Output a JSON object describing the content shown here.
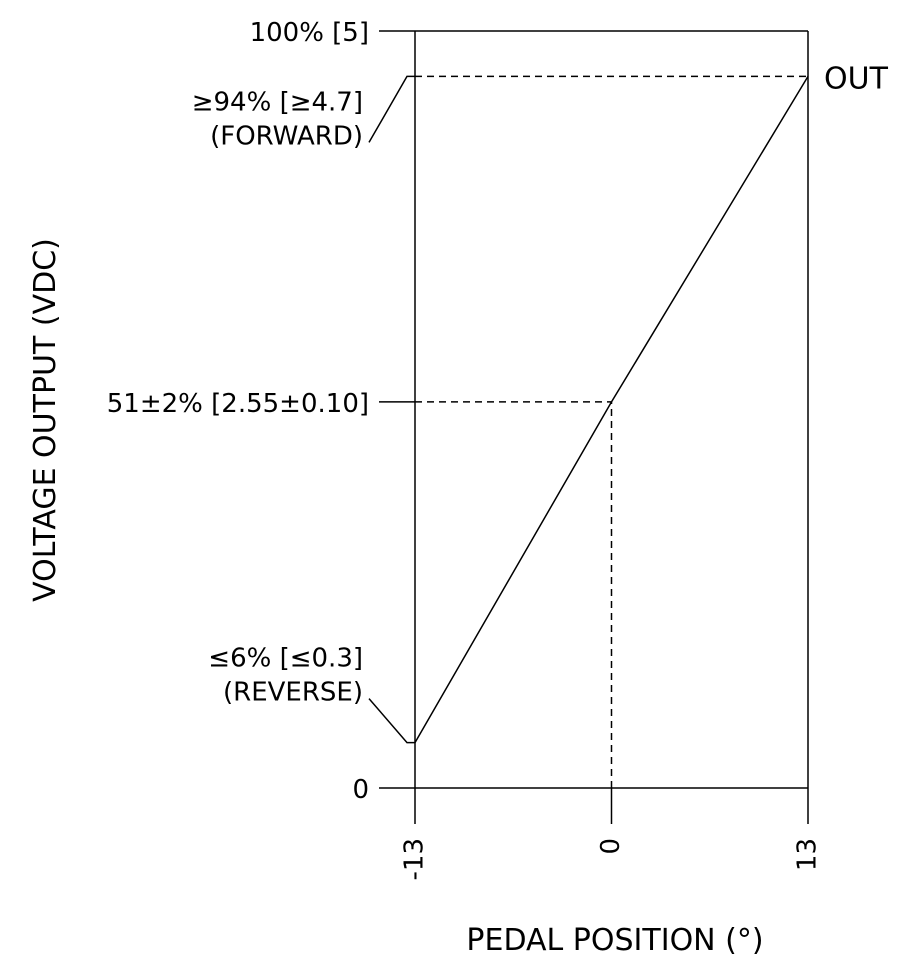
{
  "chart_data": {
    "type": "line",
    "title": "",
    "xlabel": "PEDAL POSITION (°)",
    "ylabel": "VOLTAGE OUTPUT (VDC)",
    "xlim": [
      -13,
      13
    ],
    "ylim": [
      0,
      100
    ],
    "x_ticks": [
      {
        "value": -13,
        "label": "-13"
      },
      {
        "value": 0,
        "label": "0"
      },
      {
        "value": 13,
        "label": "13"
      }
    ],
    "y_ticks": [
      {
        "value": 100,
        "label": "100% [5]"
      },
      {
        "value": 51,
        "label": "51±2% [2.55±0.10]"
      },
      {
        "value": 0,
        "label": "0"
      }
    ],
    "annotations": [
      {
        "y": 94,
        "lines": [
          "≥94% [≥4.7]",
          "(FORWARD)"
        ]
      },
      {
        "y": 6,
        "lines": [
          "≤6% [≤0.3]",
          "(REVERSE)"
        ]
      }
    ],
    "series": [
      {
        "name": "OUT",
        "x": [
          -13,
          0,
          13
        ],
        "y": [
          6,
          51,
          94
        ]
      }
    ],
    "reference_lines": [
      {
        "kind": "horizontal",
        "y": 94,
        "x_from": -13,
        "x_to": 13
      },
      {
        "kind": "horizontal",
        "y": 51,
        "x_from": -13,
        "x_to": 0
      },
      {
        "kind": "vertical",
        "x": 0,
        "y_from": 0,
        "y_to": 51
      }
    ],
    "grid": false,
    "legend": "none"
  }
}
